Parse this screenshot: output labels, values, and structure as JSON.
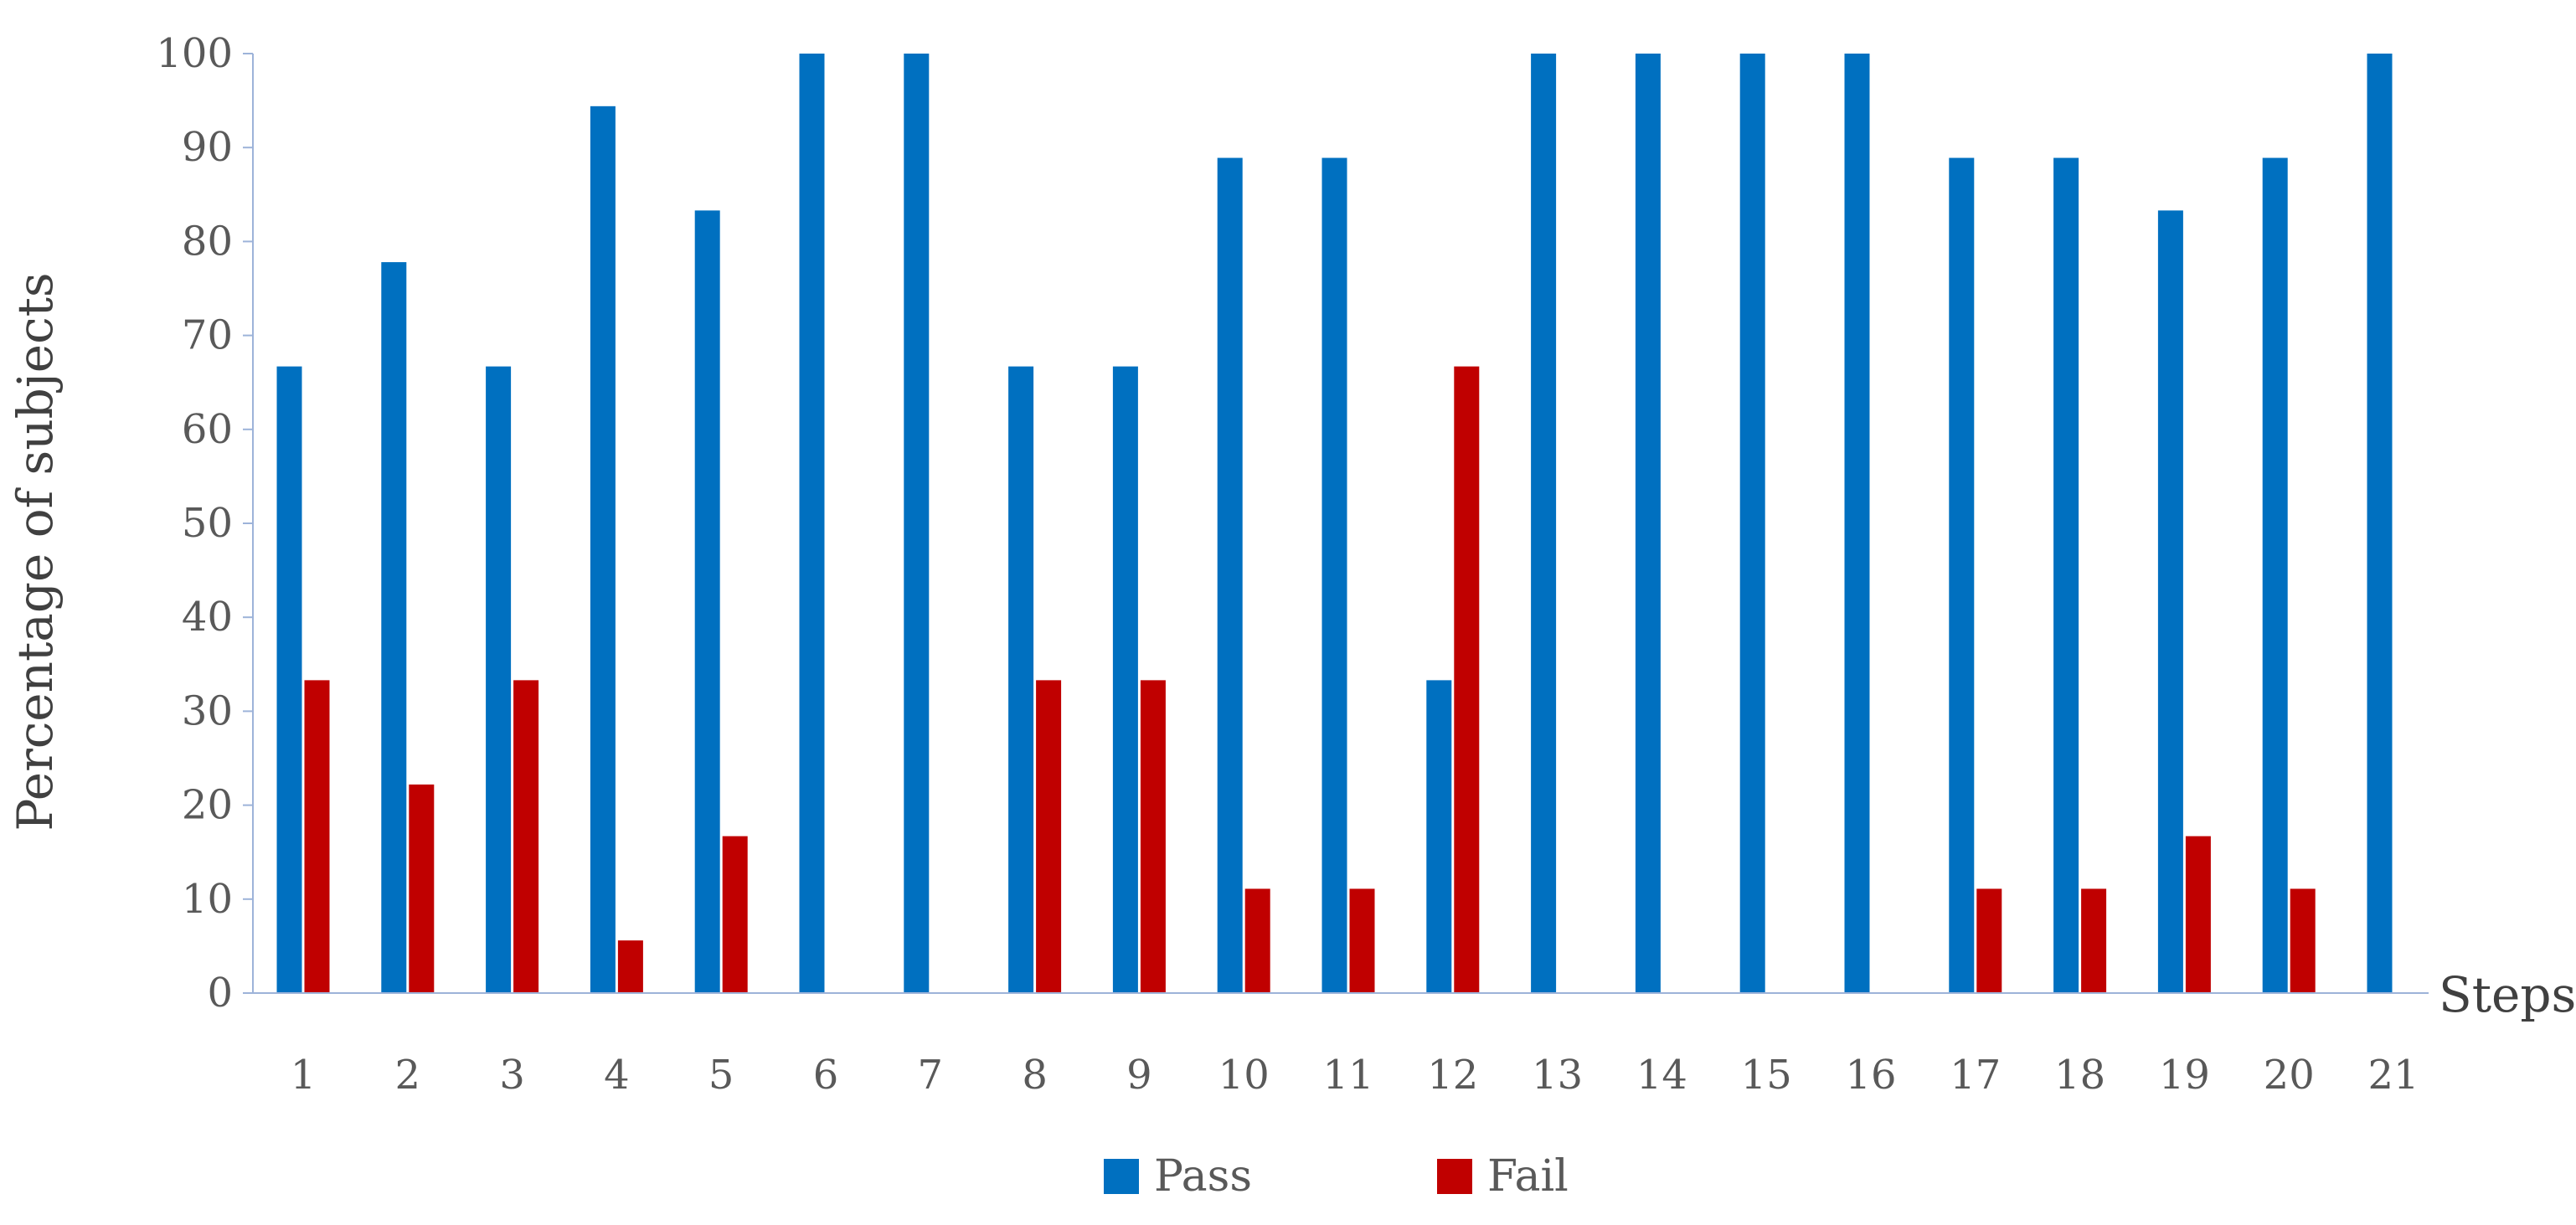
{
  "chart_data": {
    "type": "bar",
    "title": "",
    "xlabel": "Steps",
    "ylabel": "Percentage of subjects",
    "ylim": [
      0,
      100
    ],
    "yticks": [
      0,
      10,
      20,
      30,
      40,
      50,
      60,
      70,
      80,
      90,
      100
    ],
    "categories": [
      "1",
      "2",
      "3",
      "4",
      "5",
      "6",
      "7",
      "8",
      "9",
      "10",
      "11",
      "12",
      "13",
      "14",
      "15",
      "16",
      "17",
      "18",
      "19",
      "20",
      "21"
    ],
    "series": [
      {
        "name": "Pass",
        "color": "#0070C0",
        "values": [
          66.7,
          77.8,
          66.7,
          94.4,
          83.3,
          100,
          100,
          66.7,
          66.7,
          88.9,
          88.9,
          33.3,
          100,
          100,
          100,
          100,
          88.9,
          88.9,
          83.3,
          88.9,
          100
        ]
      },
      {
        "name": "Fail",
        "color": "#C00000",
        "values": [
          33.3,
          22.2,
          33.3,
          5.6,
          16.7,
          0,
          0,
          33.3,
          33.3,
          11.1,
          11.1,
          66.7,
          0,
          0,
          0,
          0,
          11.1,
          11.1,
          16.7,
          11.1,
          0
        ]
      }
    ],
    "grid": false,
    "legend": "bottom-center"
  }
}
